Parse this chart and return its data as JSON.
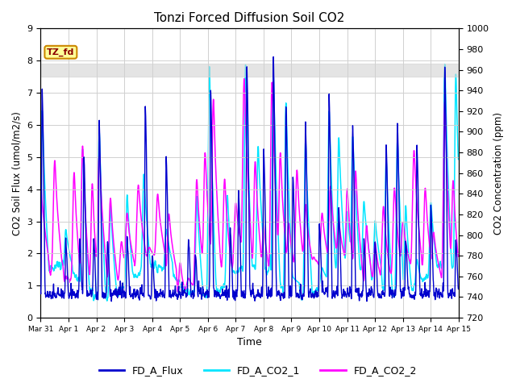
{
  "title": "Tonzi Forced Diffusion Soil CO2",
  "xlabel": "Time",
  "ylabel_left": "CO2 Soil Flux (umol/m2/s)",
  "ylabel_right": "CO2 Concentration (ppm)",
  "ylim_left": [
    0.0,
    9.0
  ],
  "ylim_right": [
    720,
    1000
  ],
  "left_yticks": [
    0.0,
    1.0,
    2.0,
    3.0,
    4.0,
    5.0,
    6.0,
    7.0,
    8.0,
    9.0
  ],
  "right_yticks": [
    720,
    740,
    760,
    780,
    800,
    820,
    840,
    860,
    880,
    900,
    920,
    940,
    960,
    980,
    1000
  ],
  "shaded_band": [
    7.5,
    7.9
  ],
  "flux_color": "#0000CD",
  "co2_1_color": "#00E5FF",
  "co2_2_color": "#FF00FF",
  "tag_text": "TZ_fd",
  "tag_facecolor": "#FFFF99",
  "tag_edgecolor": "#CC8800",
  "legend_entries": [
    "FD_A_Flux",
    "FD_A_CO2_1",
    "FD_A_CO2_2"
  ],
  "background_color": "#ffffff",
  "grid_color": "#d0d0d0",
  "duration_days": 15,
  "n_points": 2160
}
